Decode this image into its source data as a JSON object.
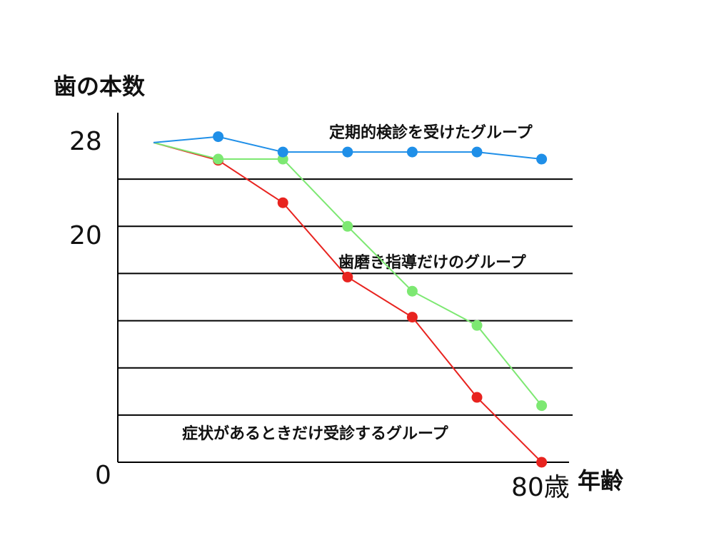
{
  "chart_data": {
    "type": "line",
    "ylabel": "歯の本数",
    "xlabel": "年齢",
    "y_tick_labels": [
      "28",
      "20",
      "0"
    ],
    "x_end_label": "80歳",
    "ylim": [
      0,
      28
    ],
    "grid": "horizontal",
    "colors": {
      "blue": "#1f8fe8",
      "green": "#7de872",
      "red": "#e8231f"
    },
    "series": [
      {
        "name": "定期的検診を受けたグループ",
        "color": "#1f8fe8",
        "x": [
          0,
          1,
          2,
          3,
          4,
          5,
          6
        ],
        "values": [
          27.1,
          27.6,
          26.3,
          26.3,
          26.3,
          26.3,
          25.7
        ]
      },
      {
        "name": "歯磨き指導だけのグループ",
        "color": "#7de872",
        "x": [
          0,
          1,
          2,
          3,
          4,
          5,
          6
        ],
        "values": [
          27.1,
          25.7,
          25.7,
          20.0,
          14.5,
          11.6,
          4.8
        ]
      },
      {
        "name": "症状があるときだけ受診するグループ",
        "color": "#e8231f",
        "x": [
          0,
          1,
          2,
          3,
          4,
          5,
          6
        ],
        "values": [
          27.1,
          25.6,
          22.0,
          15.7,
          12.3,
          5.5,
          0.0
        ]
      }
    ]
  }
}
